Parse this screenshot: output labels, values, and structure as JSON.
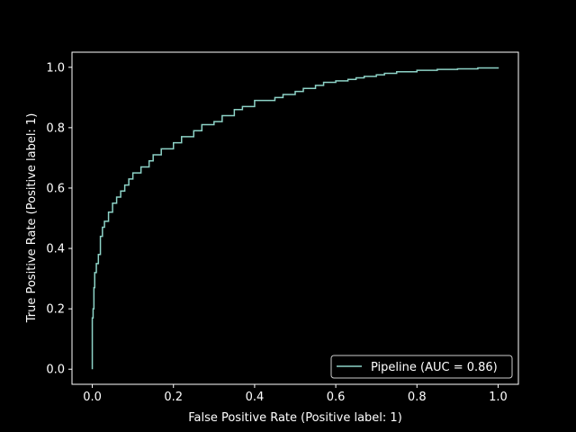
{
  "chart_data": {
    "type": "line",
    "xlabel": "False Positive Rate (Positive label: 1)",
    "ylabel": "True Positive Rate (Positive label: 1)",
    "xlim": [
      -0.05,
      1.05
    ],
    "ylim": [
      -0.05,
      1.05
    ],
    "xticks": [
      "0.0",
      "0.2",
      "0.4",
      "0.6",
      "0.8",
      "1.0"
    ],
    "yticks": [
      "0.0",
      "0.2",
      "0.4",
      "0.6",
      "0.8",
      "1.0"
    ],
    "grid": false,
    "legend_position": "lower-right",
    "background": "#000000",
    "foreground": "#ffffff",
    "series": [
      {
        "name": "Pipeline (AUC = 0.86)",
        "color": "#8dd3c7",
        "x": [
          0.0,
          0.0,
          0.002,
          0.004,
          0.006,
          0.01,
          0.015,
          0.02,
          0.025,
          0.03,
          0.04,
          0.05,
          0.06,
          0.07,
          0.08,
          0.09,
          0.1,
          0.12,
          0.14,
          0.15,
          0.17,
          0.2,
          0.22,
          0.25,
          0.27,
          0.3,
          0.32,
          0.35,
          0.37,
          0.4,
          0.42,
          0.45,
          0.47,
          0.5,
          0.52,
          0.55,
          0.57,
          0.6,
          0.63,
          0.65,
          0.67,
          0.7,
          0.72,
          0.75,
          0.8,
          0.85,
          0.9,
          0.95,
          1.0
        ],
        "y": [
          0.0,
          0.17,
          0.2,
          0.27,
          0.32,
          0.35,
          0.38,
          0.44,
          0.47,
          0.49,
          0.52,
          0.55,
          0.57,
          0.59,
          0.61,
          0.63,
          0.65,
          0.67,
          0.69,
          0.71,
          0.73,
          0.75,
          0.77,
          0.79,
          0.81,
          0.82,
          0.84,
          0.86,
          0.87,
          0.89,
          0.89,
          0.9,
          0.91,
          0.92,
          0.93,
          0.94,
          0.95,
          0.955,
          0.96,
          0.965,
          0.97,
          0.975,
          0.98,
          0.985,
          0.99,
          0.993,
          0.995,
          0.998,
          1.0
        ]
      }
    ]
  }
}
